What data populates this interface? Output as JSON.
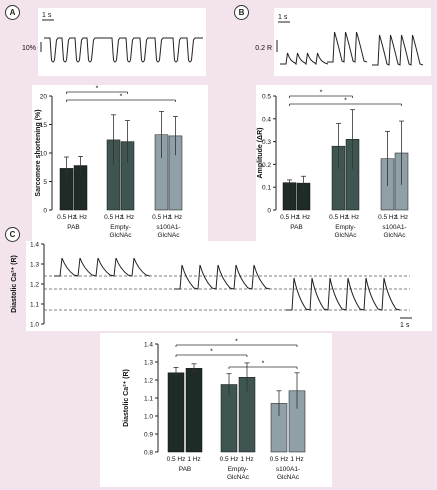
{
  "panels": {
    "a": {
      "label": "A",
      "trace_time_scale": "1 s",
      "trace_amp_scale": "10%"
    },
    "b": {
      "label": "B",
      "trace_time_scale": "1 s",
      "trace_amp_scale": "0.2 R"
    },
    "c": {
      "label": "C",
      "trace_time_scale": "1 s",
      "trace_ylabel": "Diastolic Ca²⁺ (R)",
      "trace_yticks": [
        "1.4",
        "1.3",
        "1.2",
        "1.1",
        "1.0"
      ],
      "dashed_levels": [
        1.24,
        1.175,
        1.07
      ]
    }
  },
  "chart_data": [
    {
      "type": "bar",
      "panel": "A",
      "ylabel": "Sarcomere shortening (%)",
      "ylim": [
        0,
        20
      ],
      "yticks": [
        "0",
        "5",
        "10",
        "15",
        "20"
      ],
      "groups": [
        "PAB",
        "Empty-\nGlcNAc",
        "s100A1-\nGlcNAc"
      ],
      "categories": [
        "0.5 Hz",
        "1 Hz",
        "0.5 Hz",
        "1 Hz",
        "0.5 Hz",
        "1 Hz"
      ],
      "values": [
        7.3,
        7.8,
        12.3,
        12.0,
        13.2,
        13.0
      ],
      "errors": [
        2.0,
        1.6,
        4.4,
        3.7,
        4.1,
        3.4
      ],
      "colors": [
        "#1e2b26",
        "#1e2b26",
        "#3f5552",
        "#3f5552",
        "#8fa0a7",
        "#8fa0a7"
      ],
      "significance": [
        "*",
        "*"
      ]
    },
    {
      "type": "bar",
      "panel": "B",
      "ylabel": "Amplitude (ΔR)",
      "ylim": [
        0,
        0.5
      ],
      "yticks": [
        "0",
        "0.1",
        "0.2",
        "0.3",
        "0.4",
        "0.5"
      ],
      "groups": [
        "PAB",
        "Empty-\nGlcNAc",
        "s100A1-\nGlcNAc"
      ],
      "categories": [
        "0.5 Hz",
        "1 Hz",
        "0.5 Hz",
        "1 Hz",
        "0.5 Hz",
        "1 Hz"
      ],
      "values": [
        0.12,
        0.118,
        0.28,
        0.31,
        0.225,
        0.25
      ],
      "errors": [
        0.012,
        0.03,
        0.1,
        0.13,
        0.12,
        0.14
      ],
      "colors": [
        "#1e2b26",
        "#1e2b26",
        "#3f5552",
        "#3f5552",
        "#8fa0a7",
        "#8fa0a7"
      ],
      "significance": [
        "*",
        "*"
      ]
    },
    {
      "type": "bar",
      "panel": "C",
      "ylabel": "Diastolic Ca²⁺ (R)",
      "ylim": [
        0.8,
        1.4
      ],
      "yticks": [
        "0.8",
        "0.9",
        "1.0",
        "1.1",
        "1.2",
        "1.3",
        "1.4"
      ],
      "groups": [
        "PAB",
        "Empty-\nGlcNAc",
        "s100A1-\nGlcNAc"
      ],
      "categories": [
        "0.5 Hz",
        "1 Hz",
        "0.5 Hz",
        "1 Hz",
        "0.5 Hz",
        "1 Hz"
      ],
      "values": [
        1.24,
        1.265,
        1.175,
        1.215,
        1.07,
        1.14
      ],
      "errors": [
        0.03,
        0.025,
        0.06,
        0.08,
        0.07,
        0.1
      ],
      "colors": [
        "#1e2b26",
        "#1e2b26",
        "#3f5552",
        "#3f5552",
        "#8fa0a7",
        "#8fa0a7"
      ],
      "significance": [
        "*",
        "*",
        "*"
      ]
    }
  ]
}
